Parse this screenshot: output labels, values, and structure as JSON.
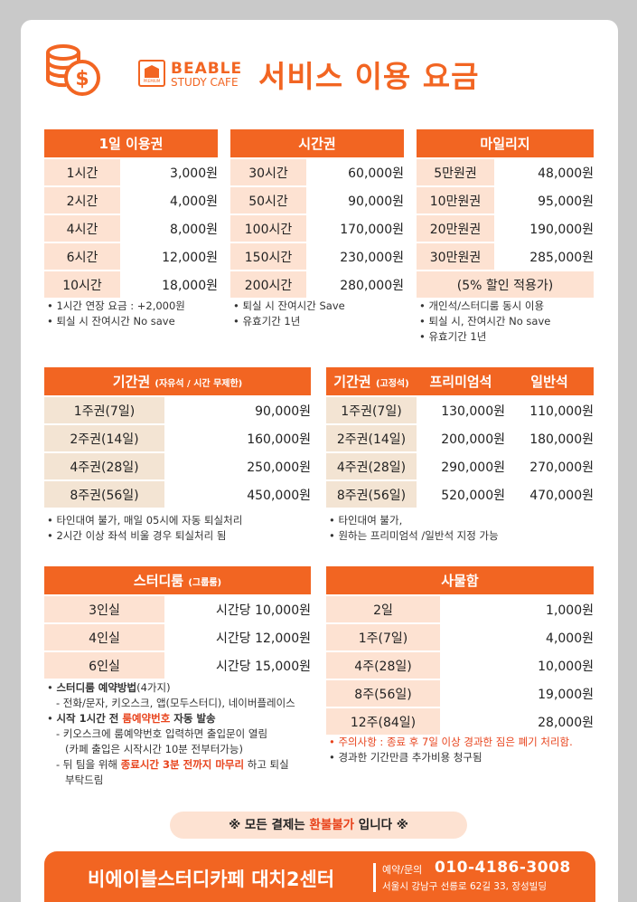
{
  "header": {
    "brand_line1": "BEABLE",
    "brand_line2": "STUDY CAFE",
    "logo_badge": "PREMIUM",
    "title": "서비스 이용 요금"
  },
  "day_pass": {
    "title": "1일 이용권",
    "rows": [
      {
        "label": "1시간",
        "price": "3,000원"
      },
      {
        "label": "2시간",
        "price": "4,000원"
      },
      {
        "label": "4시간",
        "price": "8,000원"
      },
      {
        "label": "6시간",
        "price": "12,000원"
      },
      {
        "label": "10시간",
        "price": "18,000원"
      }
    ],
    "notes": [
      "1시간 연장 요금 : +2,000원",
      "퇴실 시 잔여시간 No save"
    ]
  },
  "time_pass": {
    "title": "시간권",
    "rows": [
      {
        "label": "30시간",
        "price": "60,000원"
      },
      {
        "label": "50시간",
        "price": "90,000원"
      },
      {
        "label": "100시간",
        "price": "170,000원"
      },
      {
        "label": "150시간",
        "price": "230,000원"
      },
      {
        "label": "200시간",
        "price": "280,000원"
      }
    ],
    "notes": [
      "퇴실 시 잔여시간 Save",
      "유효기간 1년"
    ]
  },
  "mileage": {
    "title": "마일리지",
    "rows": [
      {
        "label": "5만원권",
        "price": "48,000원"
      },
      {
        "label": "10만원권",
        "price": "95,000원"
      },
      {
        "label": "20만원권",
        "price": "190,000원"
      },
      {
        "label": "30만원권",
        "price": "285,000원"
      }
    ],
    "discount_note": "(5% 할인 적용가)",
    "notes": [
      "개인석/스터디룸 동시 이용",
      "퇴실 시, 잔여시간 No save",
      "유효기간 1년"
    ]
  },
  "period_free": {
    "title": "기간권",
    "subtitle": "(자유석 / 시간 무제한)",
    "rows": [
      {
        "label": "1주권(7일)",
        "price": "90,000원"
      },
      {
        "label": "2주권(14일)",
        "price": "160,000원"
      },
      {
        "label": "4주권(28일)",
        "price": "250,000원"
      },
      {
        "label": "8주권(56일)",
        "price": "450,000원"
      }
    ],
    "notes": [
      "타인대여 불가, 매일 05시에 자동 퇴실처리",
      "2시간 이상 좌석 비울 경우 퇴실처리 됨"
    ]
  },
  "period_fixed": {
    "title": "기간권",
    "subtitle": "(고정석)",
    "col_premium": "프리미엄석",
    "col_general": "일반석",
    "rows": [
      {
        "label": "1주권(7일)",
        "premium": "130,000원",
        "general": "110,000원"
      },
      {
        "label": "2주권(14일)",
        "premium": "200,000원",
        "general": "180,000원"
      },
      {
        "label": "4주권(28일)",
        "premium": "290,000원",
        "general": "270,000원"
      },
      {
        "label": "8주권(56일)",
        "premium": "520,000원",
        "general": "470,000원"
      }
    ],
    "notes": [
      "타인대여 불가,",
      "원하는 프리미엄석 /일반석 지정 가능"
    ]
  },
  "study_room": {
    "title": "스터디룸",
    "subtitle": "(그룹룸)",
    "rows": [
      {
        "label": "3인실",
        "price": "시간당 10,000원"
      },
      {
        "label": "4인실",
        "price": "시간당 12,000원"
      },
      {
        "label": "6인실",
        "price": "시간당 15,000원"
      }
    ],
    "notes": {
      "reserve_title": "스터디룸 예약방법",
      "reserve_count": "(4가지)",
      "reserve_methods": "- 전화/문자, 키오스크, 앱(모두스터디), 네이버플레이스",
      "start_prefix": "시작 1시간 전 ",
      "start_highlight": "룸예약번호",
      "start_suffix": " 자동 발송",
      "kiosk_line1": "- 키오스크에 룸예약번호 입력하면 출입문이 열림",
      "kiosk_line2": "(카페 출입은 시작시간 10분 전부터가능)",
      "next_prefix": "- 뒤 팀을 위해 ",
      "next_highlight": "종료시간 3분 전까지 마무리",
      "next_suffix": " 하고 퇴실",
      "next_line2": "부탁드림"
    }
  },
  "locker": {
    "title": "사물함",
    "rows": [
      {
        "label": "2일",
        "price": "1,000원"
      },
      {
        "label": "1주(7일)",
        "price": "4,000원"
      },
      {
        "label": "4주(28일)",
        "price": "10,000원"
      },
      {
        "label": "8주(56일)",
        "price": "19,000원"
      },
      {
        "label": "12주(84일)",
        "price": "28,000원"
      }
    ],
    "notes": [
      "주의사항 : 종료 후 7일 이상 경과한 짐은 폐기 처리함.",
      "경과한 기간만큼 추가비용 청구됨"
    ]
  },
  "banner": {
    "prefix": "※ 모든 결제는 ",
    "highlight": "환불불가",
    "suffix": " 입니다 ※"
  },
  "footer": {
    "name": "비에이블스터디카페 대치2센터",
    "contact_label": "예약/문의",
    "phone": "010-4186-3008",
    "address": "서울시 강남구 선릉로 62길 33, 장성빌딩"
  },
  "colors": {
    "accent": "#f26522",
    "accent_light": "#fde2d2",
    "brown": "#a4661e",
    "beige": "#f3e4d3",
    "red": "#e8431c"
  },
  "icons": [
    "coin-stack-dollar-icon",
    "beable-logo-icon"
  ]
}
